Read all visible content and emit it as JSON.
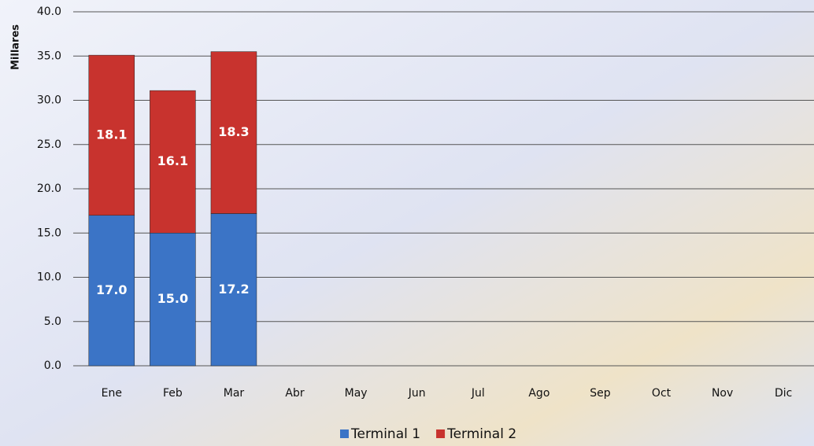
{
  "chart_data": {
    "type": "stacked_bar",
    "y_label": "Millares",
    "categories": [
      "Ene",
      "Feb",
      "Mar",
      "Abr",
      "May",
      "Jun",
      "Jul",
      "Ago",
      "Sep",
      "Oct",
      "Nov",
      "Dic"
    ],
    "series": [
      {
        "name": "Terminal 1",
        "color": "#3b74c6",
        "values": [
          17.0,
          15.0,
          17.2,
          null,
          null,
          null,
          null,
          null,
          null,
          null,
          null,
          null
        ],
        "value_labels": [
          "17.0",
          "15.0",
          "17.2",
          null,
          null,
          null,
          null,
          null,
          null,
          null,
          null,
          null
        ]
      },
      {
        "name": "Terminal 2",
        "color": "#c8332e",
        "values": [
          18.1,
          16.1,
          18.3,
          null,
          null,
          null,
          null,
          null,
          null,
          null,
          null,
          null
        ],
        "value_labels": [
          "18.1",
          "16.1",
          "18.3",
          null,
          null,
          null,
          null,
          null,
          null,
          null,
          null,
          null
        ]
      }
    ],
    "ylim": [
      0,
      40
    ],
    "yticks": [
      {
        "value": 0,
        "label": "0.0"
      },
      {
        "value": 5,
        "label": "5.0"
      },
      {
        "value": 10,
        "label": "10.0"
      },
      {
        "value": 15,
        "label": "15.0"
      },
      {
        "value": 20,
        "label": "20.0"
      },
      {
        "value": 25,
        "label": "25.0"
      },
      {
        "value": 30,
        "label": "30.0"
      },
      {
        "value": 35,
        "label": "35.0"
      },
      {
        "value": 40,
        "label": "40.0"
      }
    ],
    "grid": true,
    "legend": "bottom"
  }
}
